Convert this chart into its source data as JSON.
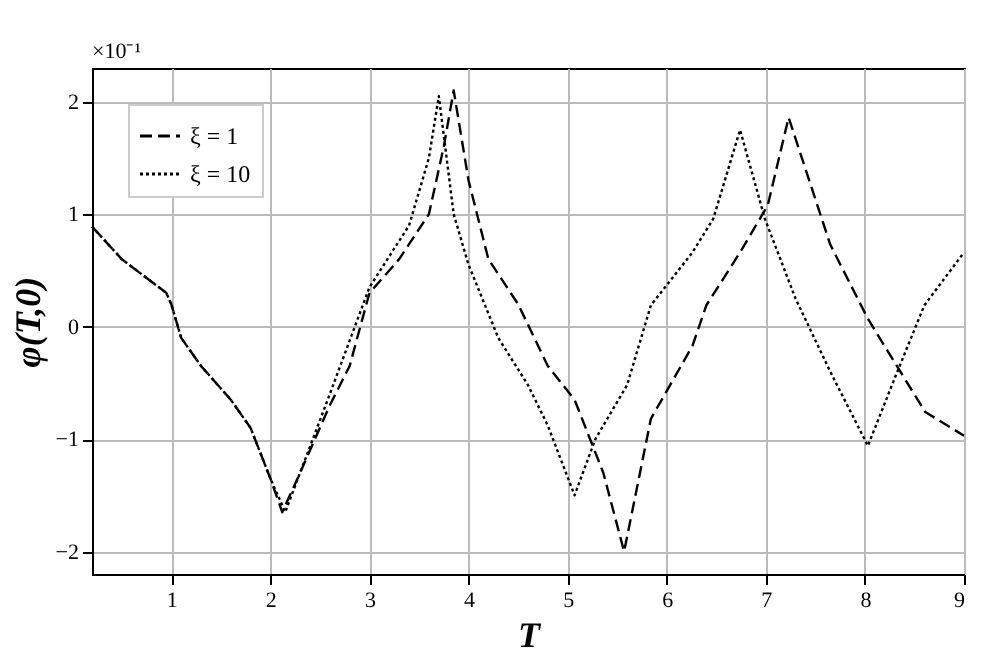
{
  "chart_data": {
    "type": "line",
    "xlabel": "T",
    "ylabel": "φ(T,0)",
    "annotations": [
      "×10⁻¹"
    ],
    "xlim": [
      0.2,
      9
    ],
    "ylim": [
      -2.2,
      2.3
    ],
    "xticks": [
      1,
      2,
      3,
      4,
      5,
      6,
      7,
      8,
      9
    ],
    "yticks": [
      -2,
      -1,
      0,
      1,
      2
    ],
    "grid": true,
    "legend": "top left",
    "series": [
      {
        "name": "ξ = 1",
        "color": "#000000",
        "line_style": "dashed",
        "x": [
          0.2,
          0.5,
          0.95,
          1.0,
          1.1,
          1.3,
          1.6,
          1.8,
          2.0,
          2.12,
          2.3,
          2.6,
          2.8,
          3.0,
          3.3,
          3.6,
          3.75,
          3.85,
          4.0,
          4.2,
          4.5,
          4.8,
          5.07,
          5.36,
          5.57,
          5.84,
          6.26,
          6.4,
          6.74,
          7.02,
          7.23,
          7.65,
          8.03,
          8.28,
          8.61,
          9.0
        ],
        "values": [
          0.89,
          0.6,
          0.3,
          0.2,
          -0.1,
          -0.35,
          -0.65,
          -0.9,
          -1.35,
          -1.65,
          -1.3,
          -0.7,
          -0.35,
          0.3,
          0.6,
          1.0,
          1.6,
          2.1,
          1.3,
          0.6,
          0.2,
          -0.35,
          -0.65,
          -1.3,
          -2.0,
          -0.82,
          -0.17,
          0.19,
          0.66,
          1.08,
          1.86,
          0.73,
          0.07,
          -0.29,
          -0.76,
          -0.97
        ]
      },
      {
        "name": "ξ = 10",
        "color": "#000000",
        "line_style": "dotted",
        "x": [
          0.2,
          0.5,
          0.95,
          1.0,
          1.1,
          1.3,
          1.6,
          1.8,
          2.0,
          2.15,
          2.6,
          3.0,
          3.4,
          3.6,
          3.7,
          3.85,
          4.0,
          4.3,
          4.6,
          4.8,
          5.07,
          5.28,
          5.6,
          5.84,
          6.26,
          6.47,
          6.74,
          6.99,
          7.3,
          7.65,
          8.03,
          8.3,
          8.6,
          9.0
        ],
        "values": [
          0.89,
          0.6,
          0.3,
          0.2,
          -0.1,
          -0.35,
          -0.65,
          -0.9,
          -1.35,
          -1.65,
          -0.6,
          0.35,
          0.9,
          1.5,
          2.05,
          1.0,
          0.55,
          -0.1,
          -0.52,
          -0.88,
          -1.5,
          -1.0,
          -0.52,
          0.19,
          0.66,
          0.96,
          1.75,
          0.96,
          0.25,
          -0.4,
          -1.06,
          -0.46,
          0.19,
          0.66
        ]
      }
    ]
  }
}
